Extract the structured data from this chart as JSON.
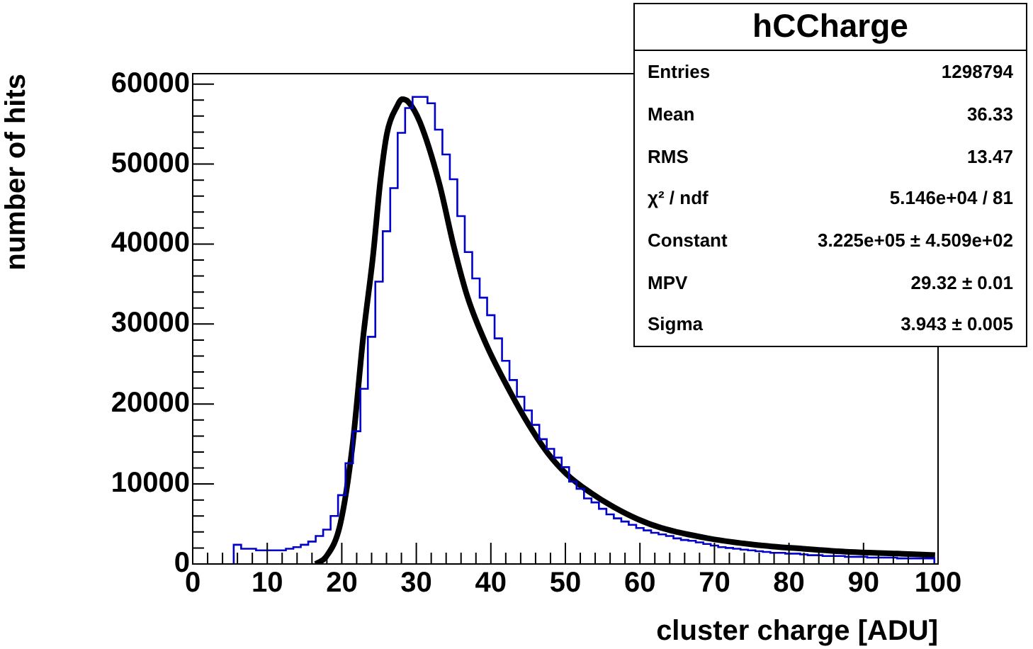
{
  "chart_data": {
    "type": "histogram",
    "title": "hCCharge",
    "xlabel": "cluster charge [ADU]",
    "ylabel": "number of hits",
    "xlim": [
      0,
      100
    ],
    "ylim": [
      0,
      61300
    ],
    "xticks": [
      0,
      {
        "value": 2,
        "label": null
      },
      {
        "value": 4,
        "label": null
      },
      {
        "value": 6,
        "label": null
      },
      {
        "value": 8,
        "label": null
      },
      10,
      {
        "value": 12,
        "label": null
      },
      {
        "value": 14,
        "label": null
      },
      {
        "value": 16,
        "label": null
      },
      {
        "value": 18,
        "label": null
      },
      20,
      {
        "value": 22,
        "label": null
      },
      {
        "value": 24,
        "label": null
      },
      {
        "value": 26,
        "label": null
      },
      {
        "value": 28,
        "label": null
      },
      30,
      {
        "value": 32,
        "label": null
      },
      {
        "value": 34,
        "label": null
      },
      {
        "value": 36,
        "label": null
      },
      {
        "value": 38,
        "label": null
      },
      40,
      {
        "value": 42,
        "label": null
      },
      {
        "value": 44,
        "label": null
      },
      {
        "value": 46,
        "label": null
      },
      {
        "value": 48,
        "label": null
      },
      50,
      {
        "value": 52,
        "label": null
      },
      {
        "value": 54,
        "label": null
      },
      {
        "value": 56,
        "label": null
      },
      {
        "value": 58,
        "label": null
      },
      60,
      {
        "value": 62,
        "label": null
      },
      {
        "value": 64,
        "label": null
      },
      {
        "value": 66,
        "label": null
      },
      {
        "value": 68,
        "label": null
      },
      70,
      {
        "value": 72,
        "label": null
      },
      {
        "value": 74,
        "label": null
      },
      {
        "value": 76,
        "label": null
      },
      {
        "value": 78,
        "label": null
      },
      80,
      {
        "value": 82,
        "label": null
      },
      {
        "value": 84,
        "label": null
      },
      {
        "value": 86,
        "label": null
      },
      {
        "value": 88,
        "label": null
      },
      90,
      {
        "value": 92,
        "label": null
      },
      {
        "value": 94,
        "label": null
      },
      {
        "value": 96,
        "label": null
      },
      {
        "value": 98,
        "label": null
      },
      100
    ],
    "yticks": [
      0,
      {
        "value": 2000,
        "label": null
      },
      {
        "value": 4000,
        "label": null
      },
      {
        "value": 6000,
        "label": null
      },
      {
        "value": 8000,
        "label": null
      },
      10000,
      {
        "value": 12000,
        "label": null
      },
      {
        "value": 14000,
        "label": null
      },
      {
        "value": 16000,
        "label": null
      },
      {
        "value": 18000,
        "label": null
      },
      20000,
      {
        "value": 22000,
        "label": null
      },
      {
        "value": 24000,
        "label": null
      },
      {
        "value": 26000,
        "label": null
      },
      {
        "value": 28000,
        "label": null
      },
      30000,
      {
        "value": 32000,
        "label": null
      },
      {
        "value": 34000,
        "label": null
      },
      {
        "value": 36000,
        "label": null
      },
      {
        "value": 38000,
        "label": null
      },
      40000,
      {
        "value": 42000,
        "label": null
      },
      {
        "value": 44000,
        "label": null
      },
      {
        "value": 46000,
        "label": null
      },
      {
        "value": 48000,
        "label": null
      },
      50000,
      {
        "value": 52000,
        "label": null
      },
      {
        "value": 54000,
        "label": null
      },
      {
        "value": 56000,
        "label": null
      },
      {
        "value": 58000,
        "label": null
      },
      60000
    ],
    "series": [
      {
        "type": "histogram",
        "color": "#0000cc",
        "bins": [
          5.5,
          6.5,
          7.5,
          8.5,
          9.5,
          10.5,
          11.5,
          12.5,
          13.5,
          14.5,
          15.5,
          16.5,
          17.5,
          18.5,
          19.5,
          20.5,
          21.5,
          22.5,
          23.5,
          24.5,
          25.5,
          26.5,
          27.5,
          28.5,
          29.5,
          30.5,
          31.5,
          32.5,
          33.5,
          34.5,
          35.5,
          36.5,
          37.5,
          38.5,
          39.5,
          40.5,
          41.5,
          42.5,
          43.5,
          44.5,
          45.5,
          46.5,
          47.5,
          48.5,
          49.5,
          50.5,
          51.5,
          52.5,
          53.5,
          54.5,
          55.5,
          56.5,
          57.5,
          58.5,
          59.5,
          60.5,
          61.5,
          62.5,
          63.5,
          64.5,
          65.5,
          66.5,
          67.5,
          68.5,
          69.5,
          70.5,
          71.5,
          72.5,
          73.5,
          74.5,
          75.5,
          76.5,
          77.5,
          78.5,
          79.5,
          80.5,
          81.5,
          82.5,
          83.5,
          84.5,
          85.5,
          86.5,
          87.5,
          88.5,
          89.5,
          90.5,
          91.5,
          92.5,
          93.5,
          94.5,
          95.5,
          96.5,
          97.5,
          98.5,
          99.5
        ],
        "values": [
          2400,
          1900,
          1900,
          1700,
          1700,
          1700,
          1700,
          1900,
          2100,
          2400,
          2800,
          3500,
          4300,
          6000,
          8600,
          12600,
          16600,
          21900,
          28400,
          35300,
          41600,
          47000,
          53900,
          57000,
          58400,
          58400,
          57600,
          54300,
          51200,
          48100,
          43500,
          39000,
          35700,
          33300,
          31100,
          28200,
          25400,
          23000,
          20900,
          19200,
          17400,
          15600,
          14400,
          13300,
          12100,
          10300,
          9400,
          8200,
          7700,
          6900,
          6200,
          5700,
          5300,
          4900,
          4500,
          4200,
          3900,
          3700,
          3500,
          3200,
          3000,
          2900,
          2700,
          2500,
          2300,
          2100,
          2000,
          1900,
          1800,
          1700,
          1600,
          1500,
          1400,
          1400,
          1300,
          1300,
          1200,
          1100,
          1100,
          1000,
          1000,
          1000,
          900,
          900,
          900,
          800,
          800,
          800,
          800,
          700,
          700,
          700,
          700,
          700
        ]
      },
      {
        "type": "line",
        "color": "#000000",
        "x": [
          16.5,
          17.9,
          19.8,
          21.4,
          22.9,
          24.2,
          25.2,
          26.1,
          27.4,
          28.1,
          28.9,
          30.5,
          33.1,
          35,
          36.9,
          39.4,
          42.6,
          45.1,
          47.6,
          50.2,
          53.4,
          56.5,
          59.7,
          62.9,
          69.2,
          75.5,
          81.9,
          88.2,
          94.5,
          99.6
        ],
        "values": [
          0,
          900,
          5000,
          14500,
          28600,
          38600,
          48100,
          54000,
          57200,
          58100,
          57800,
          55200,
          47500,
          39800,
          33300,
          27400,
          21500,
          17400,
          13900,
          11200,
          8900,
          7100,
          5600,
          4500,
          3200,
          2400,
          1900,
          1500,
          1300,
          1100
        ]
      }
    ],
    "annotations": [
      "Entries",
      "1298794",
      "Mean",
      "36.33",
      "RMS",
      "13.47",
      "χ² / ndf",
      "5.146e+04 / 81",
      "Constant",
      "3.225e+05 ± 4.509e+02",
      "MPV",
      "29.32 ± 0.01",
      "Sigma",
      "3.943 ± 0.005"
    ]
  }
}
